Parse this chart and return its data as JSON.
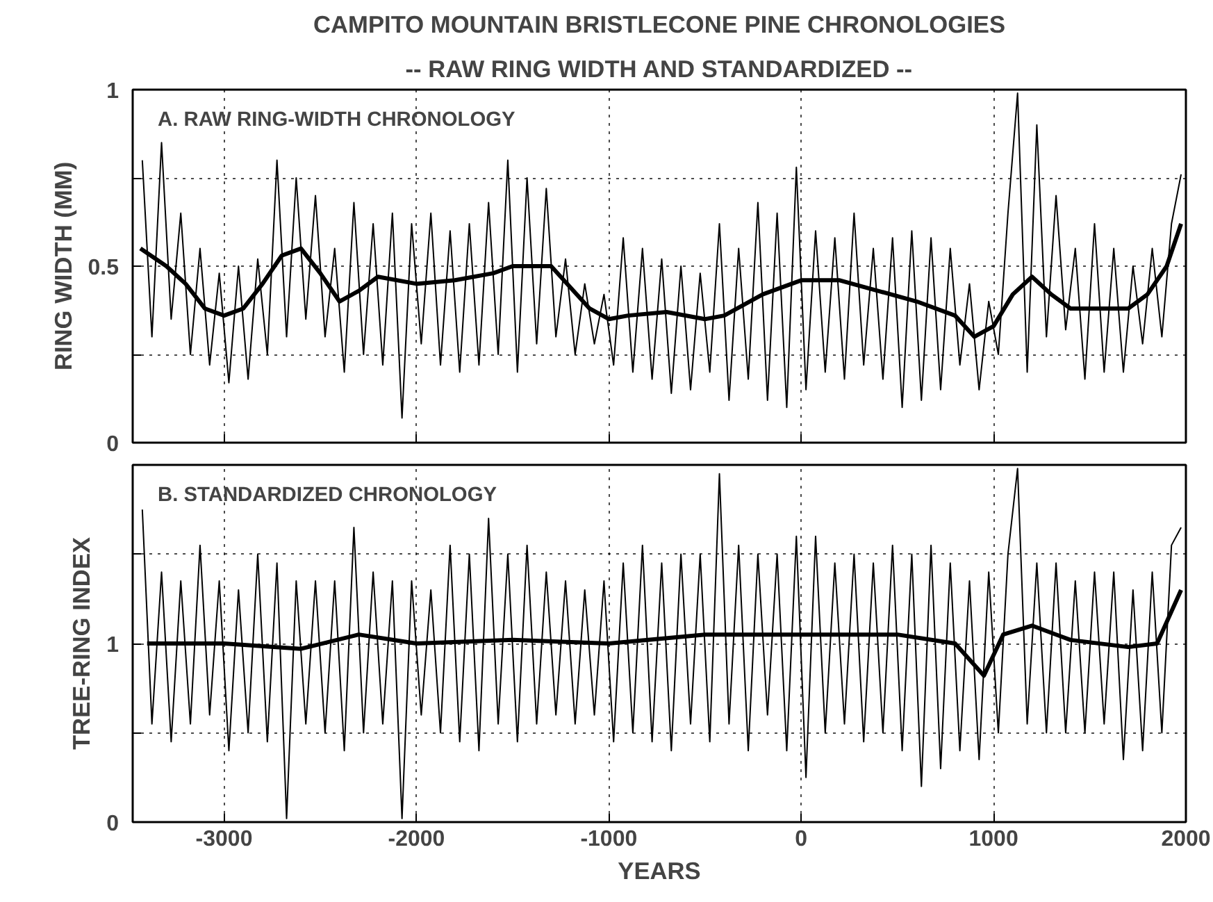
{
  "chart_data": [
    {
      "type": "line",
      "title": "CAMPITO MOUNTAIN BRISTLECONE PINE CHRONOLOGIES",
      "subtitle": "-- RAW RING WIDTH AND STANDARDIZED --",
      "ylabel": "RING WIDTH (MM)",
      "annotations": [
        "A.   RAW RING-WIDTH CHRONOLOGY"
      ],
      "xlim": [
        -3475,
        2000
      ],
      "xticks": [
        -3000,
        -2000,
        -1000,
        0,
        1000,
        2000
      ],
      "ylim": [
        0,
        1
      ],
      "yticks": [
        0,
        {
          "value": 0.25,
          "label": null
        },
        0.5,
        {
          "value": 0.75,
          "label": null
        },
        1
      ],
      "grid": true,
      "tick_labels": "y",
      "series": [
        {
          "color": "#000000",
          "x": [
            -3425,
            -3375,
            -3325,
            -3275,
            -3225,
            -3175,
            -3125,
            -3075,
            -3025,
            -2975,
            -2925,
            -2875,
            -2825,
            -2775,
            -2725,
            -2675,
            -2625,
            -2575,
            -2525,
            -2475,
            -2425,
            -2375,
            -2325,
            -2275,
            -2225,
            -2175,
            -2125,
            -2075,
            -2025,
            -1975,
            -1925,
            -1875,
            -1825,
            -1775,
            -1725,
            -1675,
            -1625,
            -1575,
            -1525,
            -1475,
            -1425,
            -1375,
            -1325,
            -1275,
            -1225,
            -1175,
            -1125,
            -1075,
            -1025,
            -975,
            -925,
            -875,
            -825,
            -775,
            -725,
            -675,
            -625,
            -575,
            -525,
            -475,
            -425,
            -375,
            -325,
            -275,
            -225,
            -175,
            -125,
            -75,
            -25,
            25,
            75,
            125,
            175,
            225,
            275,
            325,
            375,
            425,
            475,
            525,
            575,
            625,
            675,
            725,
            775,
            825,
            875,
            925,
            975,
            1025,
            1075,
            1125,
            1175,
            1225,
            1275,
            1325,
            1375,
            1425,
            1475,
            1525,
            1575,
            1625,
            1675,
            1725,
            1775,
            1825,
            1875,
            1925,
            1975
          ],
          "values": [
            0.8,
            0.3,
            0.85,
            0.35,
            0.65,
            0.25,
            0.55,
            0.22,
            0.48,
            0.17,
            0.5,
            0.18,
            0.52,
            0.25,
            0.8,
            0.3,
            0.75,
            0.35,
            0.7,
            0.3,
            0.55,
            0.2,
            0.68,
            0.25,
            0.62,
            0.22,
            0.65,
            0.07,
            0.62,
            0.28,
            0.65,
            0.22,
            0.6,
            0.2,
            0.62,
            0.22,
            0.68,
            0.25,
            0.8,
            0.2,
            0.75,
            0.28,
            0.72,
            0.3,
            0.52,
            0.25,
            0.45,
            0.28,
            0.42,
            0.22,
            0.58,
            0.2,
            0.55,
            0.18,
            0.52,
            0.14,
            0.5,
            0.15,
            0.48,
            0.2,
            0.62,
            0.12,
            0.55,
            0.18,
            0.68,
            0.12,
            0.65,
            0.1,
            0.78,
            0.15,
            0.6,
            0.2,
            0.58,
            0.18,
            0.65,
            0.22,
            0.55,
            0.18,
            0.58,
            0.1,
            0.6,
            0.12,
            0.58,
            0.15,
            0.55,
            0.22,
            0.45,
            0.15,
            0.4,
            0.25,
            0.65,
            0.99,
            0.2,
            0.9,
            0.3,
            0.7,
            0.32,
            0.55,
            0.18,
            0.62,
            0.2,
            0.55,
            0.2,
            0.5,
            0.28,
            0.55,
            0.3,
            0.62,
            0.76
          ]
        },
        {
          "color": "#000000",
          "x": [
            -3435,
            -3300,
            -3200,
            -3100,
            -3000,
            -2900,
            -2800,
            -2700,
            -2600,
            -2500,
            -2400,
            -2300,
            -2200,
            -2000,
            -1800,
            -1600,
            -1500,
            -1300,
            -1200,
            -1100,
            -1000,
            -900,
            -700,
            -500,
            -400,
            -200,
            0,
            200,
            400,
            600,
            800,
            900,
            1000,
            1100,
            1200,
            1300,
            1400,
            1600,
            1700,
            1800,
            1900,
            1975
          ],
          "values": [
            0.55,
            0.5,
            0.45,
            0.38,
            0.36,
            0.38,
            0.45,
            0.53,
            0.55,
            0.48,
            0.4,
            0.43,
            0.47,
            0.45,
            0.46,
            0.48,
            0.5,
            0.5,
            0.44,
            0.38,
            0.35,
            0.36,
            0.37,
            0.35,
            0.36,
            0.42,
            0.46,
            0.46,
            0.43,
            0.4,
            0.36,
            0.3,
            0.33,
            0.42,
            0.47,
            0.42,
            0.38,
            0.38,
            0.38,
            0.42,
            0.5,
            0.62
          ]
        }
      ]
    },
    {
      "type": "line",
      "xlabel": "YEARS",
      "ylabel": "TREE-RING INDEX",
      "annotations": [
        "B.   STANDARDIZED CHRONOLOGY"
      ],
      "xlim": [
        -3475,
        2000
      ],
      "xticks": [
        -3000,
        -2000,
        -1000,
        0,
        1000,
        2000
      ],
      "ylim": [
        0,
        2
      ],
      "yticks": [
        0,
        {
          "value": 0.5,
          "label": null
        },
        1,
        {
          "value": 1.5,
          "label": null
        },
        {
          "value": 2,
          "label": null
        }
      ],
      "grid": true,
      "series": [
        {
          "color": "#000000",
          "x": [
            -3425,
            -3375,
            -3325,
            -3275,
            -3225,
            -3175,
            -3125,
            -3075,
            -3025,
            -2975,
            -2925,
            -2875,
            -2825,
            -2775,
            -2725,
            -2675,
            -2625,
            -2575,
            -2525,
            -2475,
            -2425,
            -2375,
            -2325,
            -2275,
            -2225,
            -2175,
            -2125,
            -2075,
            -2025,
            -1975,
            -1925,
            -1875,
            -1825,
            -1775,
            -1725,
            -1675,
            -1625,
            -1575,
            -1525,
            -1475,
            -1425,
            -1375,
            -1325,
            -1275,
            -1225,
            -1175,
            -1125,
            -1075,
            -1025,
            -975,
            -925,
            -875,
            -825,
            -775,
            -725,
            -675,
            -625,
            -575,
            -525,
            -475,
            -425,
            -375,
            -325,
            -275,
            -225,
            -175,
            -125,
            -75,
            -25,
            25,
            75,
            125,
            175,
            225,
            275,
            325,
            375,
            425,
            475,
            525,
            575,
            625,
            675,
            725,
            775,
            825,
            875,
            925,
            975,
            1025,
            1075,
            1125,
            1175,
            1225,
            1275,
            1325,
            1375,
            1425,
            1475,
            1525,
            1575,
            1625,
            1675,
            1725,
            1775,
            1825,
            1875,
            1925,
            1975
          ],
          "values": [
            1.75,
            0.55,
            1.4,
            0.45,
            1.35,
            0.55,
            1.55,
            0.6,
            1.35,
            0.4,
            1.3,
            0.5,
            1.5,
            0.45,
            1.45,
            0.02,
            1.35,
            0.55,
            1.35,
            0.5,
            1.35,
            0.4,
            1.65,
            0.5,
            1.4,
            0.55,
            1.35,
            0.02,
            1.35,
            0.6,
            1.3,
            0.5,
            1.55,
            0.45,
            1.5,
            0.4,
            1.7,
            0.55,
            1.5,
            0.45,
            1.55,
            0.55,
            1.4,
            0.6,
            1.35,
            0.55,
            1.3,
            0.6,
            1.35,
            0.45,
            1.45,
            0.5,
            1.55,
            0.45,
            1.45,
            0.4,
            1.5,
            0.55,
            1.5,
            0.45,
            1.95,
            0.55,
            1.55,
            0.4,
            1.5,
            0.6,
            1.5,
            0.4,
            1.6,
            0.25,
            1.6,
            0.5,
            1.45,
            0.55,
            1.5,
            0.45,
            1.45,
            0.5,
            1.55,
            0.4,
            1.5,
            0.2,
            1.55,
            0.3,
            1.45,
            0.4,
            1.35,
            0.35,
            1.4,
            0.5,
            1.5,
            1.98,
            0.55,
            1.45,
            0.5,
            1.45,
            0.5,
            1.35,
            0.5,
            1.4,
            0.55,
            1.4,
            0.35,
            1.3,
            0.4,
            1.4,
            0.5,
            1.55,
            1.65
          ]
        },
        {
          "color": "#000000",
          "x": [
            -3400,
            -3000,
            -2600,
            -2300,
            -2000,
            -1500,
            -1000,
            -500,
            0,
            500,
            800,
            950,
            1050,
            1200,
            1400,
            1700,
            1850,
            1975
          ],
          "values": [
            1.0,
            1.0,
            0.97,
            1.05,
            1.0,
            1.02,
            1.0,
            1.05,
            1.05,
            1.05,
            1.0,
            0.82,
            1.05,
            1.1,
            1.02,
            0.98,
            1.0,
            1.3
          ]
        }
      ]
    }
  ]
}
